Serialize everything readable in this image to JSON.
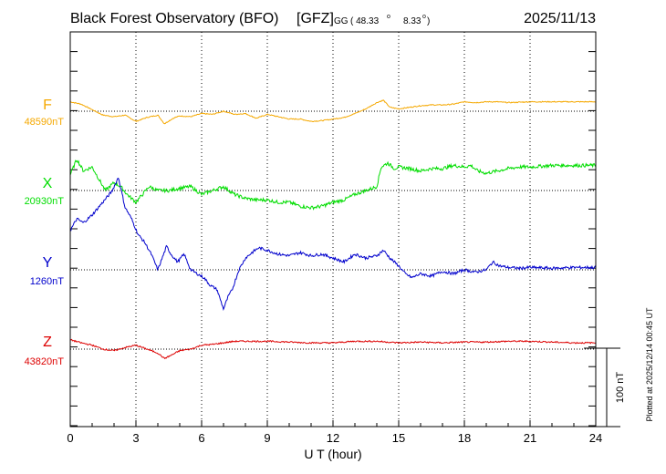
{
  "header": {
    "title": "Black Forest Observatory (BFO)",
    "agency": "[GFZ]",
    "coord_system": "GG",
    "latitude": "( 48.33",
    "longitude": "8.33",
    "degree_symbol": "o",
    "close_paren": ")",
    "date": "2025/11/13"
  },
  "footer": {
    "plotted_note": "Plotted at 2025/12/14 00:45 UT",
    "scale_label": "100 nT"
  },
  "chart_data": {
    "type": "line",
    "title": "Black Forest Observatory (BFO)",
    "xlabel": "U T (hour)",
    "ylabel": "",
    "xlim": [
      0,
      24
    ],
    "x_ticks": [
      "0",
      "3",
      "6",
      "9",
      "12",
      "15",
      "18",
      "21",
      "24"
    ],
    "grid": true,
    "scale_bar_nT": 100,
    "series": [
      {
        "name": "F",
        "baseline_label": "48590nT",
        "baseline_nT": 48590,
        "color": "#f5a800",
        "x": [
          0,
          0.5,
          1.0,
          1.5,
          2.0,
          2.5,
          3.0,
          3.5,
          4.0,
          4.3,
          4.7,
          5.0,
          5.5,
          6.0,
          6.5,
          7.0,
          7.5,
          8.0,
          8.5,
          9.0,
          9.5,
          10.0,
          10.5,
          11.0,
          11.5,
          12.0,
          12.5,
          13.0,
          13.5,
          14.0,
          14.3,
          14.6,
          15.0,
          15.5,
          16.0,
          16.5,
          17.0,
          17.5,
          18.0,
          18.5,
          19.0,
          19.5,
          20.0,
          21.0,
          22.0,
          23.0,
          24.0
        ],
        "y": [
          12,
          9,
          2,
          -5,
          -7,
          -5,
          -13,
          -8,
          -5,
          -16,
          -9,
          -6,
          -7,
          -3,
          -4,
          0,
          -4,
          -3,
          -9,
          -4,
          -7,
          -10,
          -10,
          -13,
          -12,
          -10,
          -8,
          -3,
          3,
          11,
          14,
          5,
          3,
          5,
          7,
          8,
          8,
          9,
          12,
          11,
          12,
          12,
          11,
          12,
          12,
          12,
          12
        ]
      },
      {
        "name": "X",
        "baseline_label": "20930nT",
        "baseline_nT": 20930,
        "color": "#00dd00",
        "x": [
          0,
          0.3,
          0.6,
          1.0,
          1.3,
          1.6,
          2.0,
          2.3,
          2.6,
          3.0,
          3.3,
          3.6,
          4.0,
          4.5,
          5.0,
          5.5,
          6.0,
          6.5,
          7.0,
          7.5,
          8.0,
          8.5,
          9.0,
          9.5,
          10.0,
          10.5,
          11.0,
          11.5,
          12.0,
          12.5,
          13.0,
          13.5,
          14.0,
          14.2,
          14.5,
          14.8,
          15.0,
          15.5,
          16.0,
          16.5,
          17.0,
          17.5,
          18.0,
          18.3,
          18.6,
          19.0,
          19.5,
          20.0,
          20.5,
          21.0,
          22.0,
          23.0,
          24.0
        ],
        "y": [
          20,
          40,
          25,
          30,
          15,
          0,
          10,
          5,
          -5,
          -15,
          -5,
          5,
          0,
          0,
          3,
          5,
          -5,
          0,
          5,
          -5,
          -10,
          -12,
          -12,
          -15,
          -15,
          -20,
          -22,
          -20,
          -15,
          -12,
          -5,
          0,
          5,
          30,
          35,
          28,
          30,
          28,
          25,
          28,
          28,
          32,
          30,
          32,
          25,
          22,
          25,
          28,
          30,
          30,
          32,
          32,
          32
        ]
      },
      {
        "name": "Y",
        "baseline_label": "1260nT",
        "baseline_nT": 1260,
        "color": "#0000cc",
        "x": [
          0,
          0.3,
          0.6,
          1.0,
          1.3,
          1.6,
          1.9,
          2.2,
          2.5,
          2.8,
          3.1,
          3.4,
          3.7,
          4.0,
          4.2,
          4.4,
          4.6,
          4.9,
          5.2,
          5.5,
          5.8,
          6.1,
          6.4,
          6.7,
          7.0,
          7.2,
          7.4,
          7.7,
          8.0,
          8.3,
          8.6,
          9.0,
          9.5,
          10.0,
          10.5,
          11.0,
          11.5,
          12.0,
          12.5,
          13.0,
          13.5,
          14.0,
          14.3,
          14.6,
          15.0,
          15.3,
          15.6,
          16.0,
          16.5,
          17.0,
          17.5,
          18.0,
          18.5,
          19.0,
          19.3,
          19.6,
          20.0,
          20.5,
          21.0,
          22.0,
          23.0,
          24.0
        ],
        "y": [
          50,
          65,
          60,
          70,
          80,
          90,
          100,
          118,
          80,
          65,
          45,
          35,
          20,
          0,
          15,
          30,
          20,
          10,
          20,
          0,
          -5,
          -10,
          -20,
          -25,
          -50,
          -35,
          -25,
          0,
          15,
          22,
          28,
          25,
          20,
          18,
          22,
          18,
          20,
          15,
          10,
          20,
          15,
          18,
          25,
          15,
          5,
          -5,
          -10,
          -5,
          -8,
          -2,
          -5,
          0,
          -3,
          0,
          10,
          5,
          3,
          2,
          3,
          2,
          3,
          3
        ]
      },
      {
        "name": "Z",
        "baseline_label": "43820nT",
        "baseline_nT": 43820,
        "color": "#dd0000",
        "x": [
          0,
          0.5,
          1.0,
          1.5,
          2.0,
          2.5,
          3.0,
          3.5,
          4.0,
          4.3,
          4.6,
          5.0,
          5.5,
          6.0,
          6.5,
          7.0,
          7.5,
          8.0,
          9.0,
          10.0,
          11.0,
          12.0,
          13.0,
          14.0,
          14.5,
          15.0,
          16.0,
          17.0,
          18.0,
          19.0,
          20.0,
          21.0,
          22.0,
          23.0,
          24.0
        ],
        "y": [
          12,
          8,
          5,
          0,
          -2,
          2,
          5,
          0,
          -5,
          -12,
          -8,
          -2,
          0,
          5,
          6,
          8,
          10,
          10,
          10,
          9,
          8,
          8,
          10,
          10,
          9,
          8,
          9,
          8,
          9,
          9,
          10,
          10,
          9,
          8,
          8
        ]
      }
    ]
  }
}
